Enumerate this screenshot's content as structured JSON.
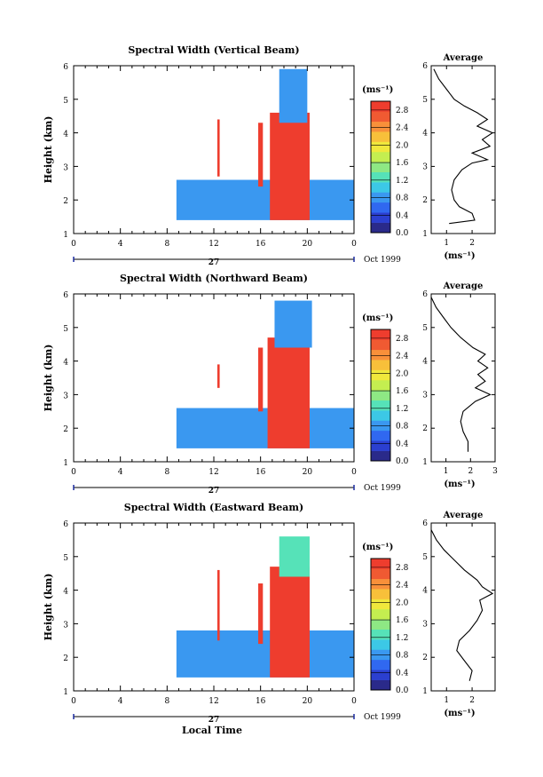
{
  "colors": {
    "colorscale": [
      "#2a2a8a",
      "#2b3fd0",
      "#3068f0",
      "#3a98f0",
      "#3cc8e6",
      "#56e2b8",
      "#8ee884",
      "#c4ee50",
      "#f0e83c",
      "#f8c03a",
      "#f8903a",
      "#f05a32",
      "#ee3d2e"
    ]
  },
  "shared": {
    "x_tick_labels": [
      "0",
      "4",
      "8",
      "12",
      "16",
      "20",
      "0"
    ],
    "day_label": "27",
    "month_label": "Oct 1999",
    "bottom_xlabel": "Local Time",
    "ylabel": "Height (km)",
    "y_tick_labels": [
      "1",
      "2",
      "3",
      "4",
      "5",
      "6"
    ],
    "colorbar_unit": "(ms⁻¹)",
    "avg_title": "Average",
    "avg_xlabel": "(ms⁻¹)"
  },
  "chart_data": [
    {
      "type": "heatmap",
      "title": "Spectral Width (Vertical Beam)",
      "xlabel": "",
      "ylabel": "Height (km)",
      "xlim": [
        0,
        24
      ],
      "ylim": [
        1,
        6
      ],
      "colorbar": {
        "label": "(ms⁻¹)",
        "ticks": [
          "2.8",
          "2.4",
          "2.0",
          "1.6",
          "1.2",
          "0.8",
          "0.4",
          "0.0"
        ],
        "range": [
          0,
          3.0
        ]
      },
      "regions": [
        {
          "x": [
            8.8,
            24
          ],
          "y": [
            1.4,
            2.6
          ],
          "value": 0.9
        },
        {
          "x": [
            16.8,
            20.2
          ],
          "y": [
            1.4,
            4.6
          ],
          "value": 3.0
        },
        {
          "x": [
            17.6,
            20.0
          ],
          "y": [
            4.3,
            5.9
          ],
          "value": 0.9
        },
        {
          "x": [
            12.3,
            12.5
          ],
          "y": [
            2.7,
            4.4
          ],
          "value": 3.0
        },
        {
          "x": [
            15.8,
            16.2
          ],
          "y": [
            2.4,
            4.3
          ],
          "value": 2.8
        }
      ],
      "average_profile": {
        "title": "Average",
        "xlabel": "(ms⁻¹)",
        "xticks": [
          "1",
          "2"
        ],
        "xlim": [
          0.4,
          2.9
        ],
        "ylim": [
          1,
          6
        ],
        "points": [
          [
            1.1,
            1.3
          ],
          [
            2.1,
            1.4
          ],
          [
            2.0,
            1.6
          ],
          [
            1.5,
            1.8
          ],
          [
            1.3,
            2.0
          ],
          [
            1.2,
            2.3
          ],
          [
            1.3,
            2.6
          ],
          [
            1.6,
            2.9
          ],
          [
            2.0,
            3.1
          ],
          [
            2.6,
            3.2
          ],
          [
            2.0,
            3.4
          ],
          [
            2.7,
            3.6
          ],
          [
            2.4,
            3.8
          ],
          [
            2.8,
            4.0
          ],
          [
            2.2,
            4.2
          ],
          [
            2.6,
            4.4
          ],
          [
            2.2,
            4.6
          ],
          [
            1.7,
            4.8
          ],
          [
            1.3,
            5.0
          ],
          [
            1.0,
            5.3
          ],
          [
            0.7,
            5.6
          ],
          [
            0.5,
            5.9
          ]
        ]
      }
    },
    {
      "type": "heatmap",
      "title": "Spectral Width (Northward Beam)",
      "xlabel": "",
      "ylabel": "Height (km)",
      "xlim": [
        0,
        24
      ],
      "ylim": [
        1,
        6
      ],
      "colorbar": {
        "label": "(ms⁻¹)",
        "ticks": [
          "2.8",
          "2.4",
          "2.0",
          "1.6",
          "1.2",
          "0.8",
          "0.4",
          "0.0"
        ],
        "range": [
          0,
          3.0
        ]
      },
      "regions": [
        {
          "x": [
            8.8,
            24
          ],
          "y": [
            1.4,
            2.6
          ],
          "value": 0.9
        },
        {
          "x": [
            16.6,
            20.2
          ],
          "y": [
            1.4,
            4.7
          ],
          "value": 3.0
        },
        {
          "x": [
            17.2,
            20.4
          ],
          "y": [
            4.4,
            5.8
          ],
          "value": 0.9
        },
        {
          "x": [
            12.3,
            12.5
          ],
          "y": [
            3.2,
            3.9
          ],
          "value": 2.8
        },
        {
          "x": [
            15.8,
            16.2
          ],
          "y": [
            2.5,
            4.4
          ],
          "value": 2.8
        }
      ],
      "average_profile": {
        "title": "Average",
        "xlabel": "(ms⁻¹)",
        "xticks": [
          "1",
          "2",
          "3"
        ],
        "xlim": [
          0.4,
          3.0
        ],
        "ylim": [
          1,
          6
        ],
        "points": [
          [
            1.9,
            1.3
          ],
          [
            1.9,
            1.6
          ],
          [
            1.7,
            1.9
          ],
          [
            1.6,
            2.2
          ],
          [
            1.7,
            2.5
          ],
          [
            2.2,
            2.8
          ],
          [
            2.8,
            3.0
          ],
          [
            2.2,
            3.2
          ],
          [
            2.6,
            3.4
          ],
          [
            2.3,
            3.6
          ],
          [
            2.7,
            3.8
          ],
          [
            2.3,
            4.0
          ],
          [
            2.6,
            4.2
          ],
          [
            2.1,
            4.4
          ],
          [
            1.6,
            4.7
          ],
          [
            1.2,
            5.0
          ],
          [
            0.9,
            5.3
          ],
          [
            0.6,
            5.6
          ],
          [
            0.4,
            5.9
          ]
        ]
      }
    },
    {
      "type": "heatmap",
      "title": "Spectral Width (Eastward Beam)",
      "xlabel": "Local Time",
      "ylabel": "Height (km)",
      "xlim": [
        0,
        24
      ],
      "ylim": [
        1,
        6
      ],
      "colorbar": {
        "label": "(ms⁻¹)",
        "ticks": [
          "2.8",
          "2.4",
          "2.0",
          "1.6",
          "1.2",
          "0.8",
          "0.4",
          "0.0"
        ],
        "range": [
          0,
          3.0
        ]
      },
      "regions": [
        {
          "x": [
            8.8,
            24
          ],
          "y": [
            1.4,
            2.8
          ],
          "value": 0.9
        },
        {
          "x": [
            16.8,
            20.2
          ],
          "y": [
            1.4,
            4.7
          ],
          "value": 3.0
        },
        {
          "x": [
            17.6,
            20.2
          ],
          "y": [
            4.4,
            5.6
          ],
          "value": 1.2
        },
        {
          "x": [
            12.3,
            12.5
          ],
          "y": [
            2.5,
            4.6
          ],
          "value": 3.0
        },
        {
          "x": [
            15.8,
            16.2
          ],
          "y": [
            2.4,
            4.2
          ],
          "value": 2.8
        }
      ],
      "average_profile": {
        "title": "Average",
        "xlabel": "(ms⁻¹)",
        "xticks": [
          "1",
          "2"
        ],
        "xlim": [
          0.4,
          2.9
        ],
        "ylim": [
          1,
          6
        ],
        "points": [
          [
            1.9,
            1.3
          ],
          [
            2.0,
            1.6
          ],
          [
            1.7,
            1.9
          ],
          [
            1.4,
            2.2
          ],
          [
            1.5,
            2.5
          ],
          [
            1.9,
            2.8
          ],
          [
            2.2,
            3.1
          ],
          [
            2.4,
            3.4
          ],
          [
            2.3,
            3.7
          ],
          [
            2.8,
            3.9
          ],
          [
            2.4,
            4.1
          ],
          [
            2.2,
            4.3
          ],
          [
            1.7,
            4.6
          ],
          [
            1.3,
            4.9
          ],
          [
            0.9,
            5.2
          ],
          [
            0.6,
            5.5
          ],
          [
            0.4,
            5.8
          ]
        ]
      }
    }
  ]
}
